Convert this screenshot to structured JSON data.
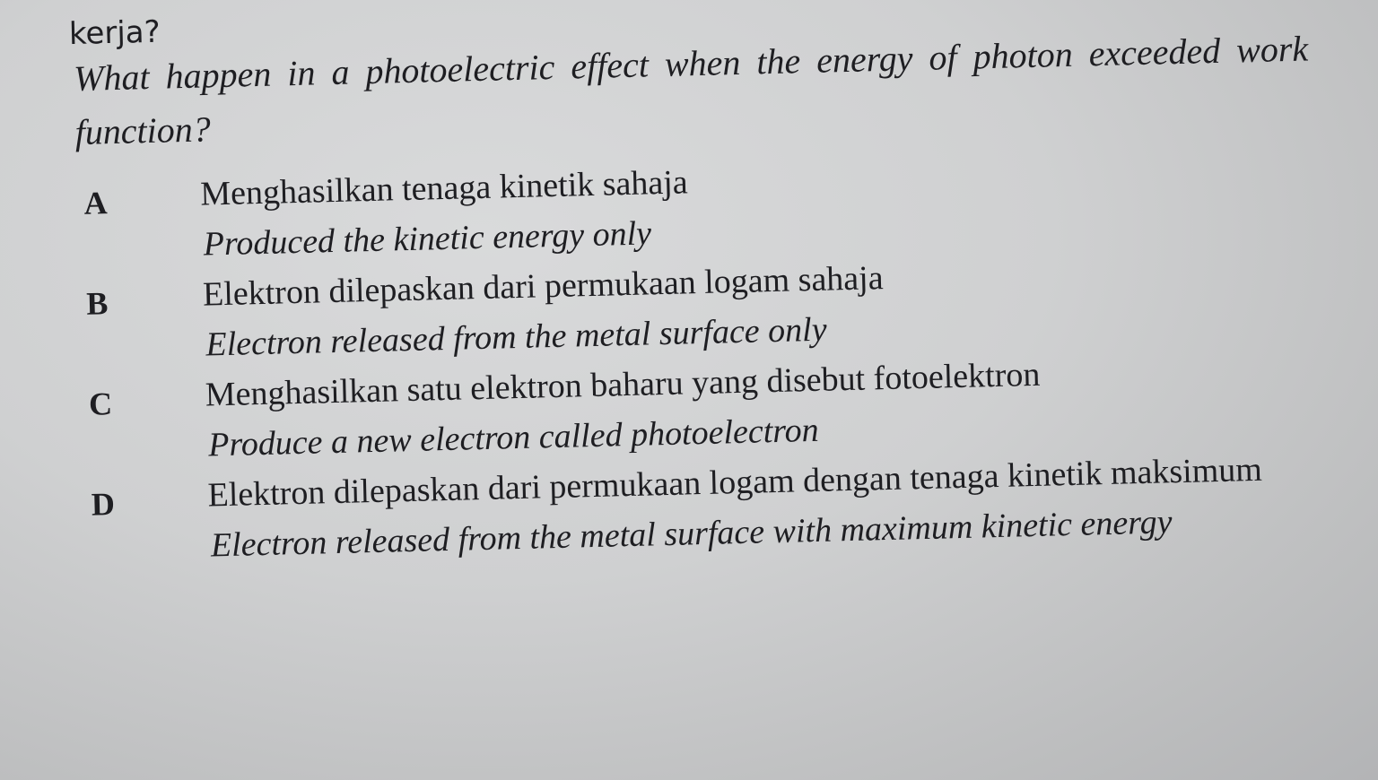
{
  "question": {
    "prefix": "kerja?",
    "text": "What happen in a photoelectric effect when the energy of photon exceeded work function?"
  },
  "options": [
    {
      "label": "A",
      "malay": "Menghasilkan tenaga kinetik sahaja",
      "english": "Produced the kinetic energy only"
    },
    {
      "label": "B",
      "malay": "Elektron dilepaskan dari permukaan logam sahaja",
      "english": "Electron released from the metal surface only"
    },
    {
      "label": "C",
      "malay": "Menghasilkan satu elektron baharu yang disebut fotoelektron",
      "english": "Produce a new electron called photoelectron"
    },
    {
      "label": "D",
      "malay": "Elektron dilepaskan dari permukaan logam dengan tenaga kinetik maksimum",
      "english": "Electron released from the metal surface with maximum kinetic energy"
    }
  ]
}
